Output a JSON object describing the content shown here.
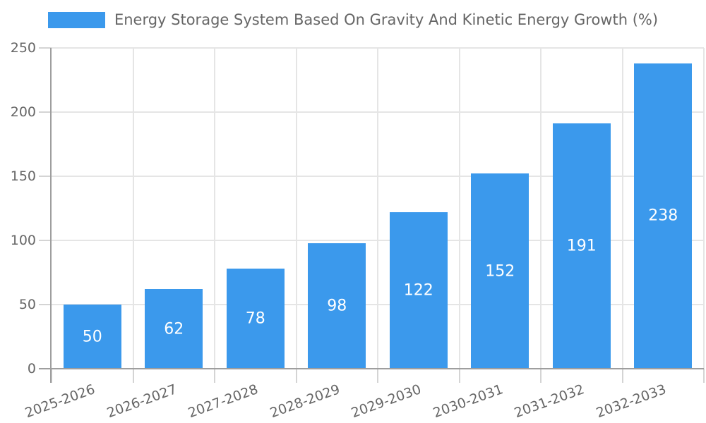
{
  "chart_data": {
    "type": "bar",
    "title": "Energy Storage System Based On Gravity And Kinetic Energy Growth (%)",
    "legend_entries": [
      "Energy Storage System Based On Gravity And Kinetic Energy Growth (%)"
    ],
    "legend_position": "top",
    "categories": [
      "2025-2026",
      "2026-2027",
      "2027-2028",
      "2028-2029",
      "2029-2030",
      "2030-2031",
      "2031-2032",
      "2032-2033"
    ],
    "values": [
      50,
      62,
      78,
      98,
      122,
      152,
      191,
      238
    ],
    "xlabel": "",
    "ylabel": "",
    "ylim": [
      0,
      250
    ],
    "yticks": [
      0,
      50,
      100,
      150,
      200,
      250
    ],
    "x_tick_rotation_deg": -20,
    "grid": true,
    "value_label_position": "center",
    "colors": {
      "bar": "#3B99EC",
      "value_label": "#FFFFFF",
      "axis_line": "#9E9E9E",
      "gridline": "#E5E5E5",
      "tick_mark": "#D4D4D4",
      "text": "#666666",
      "background": "#FFFFFF"
    }
  }
}
